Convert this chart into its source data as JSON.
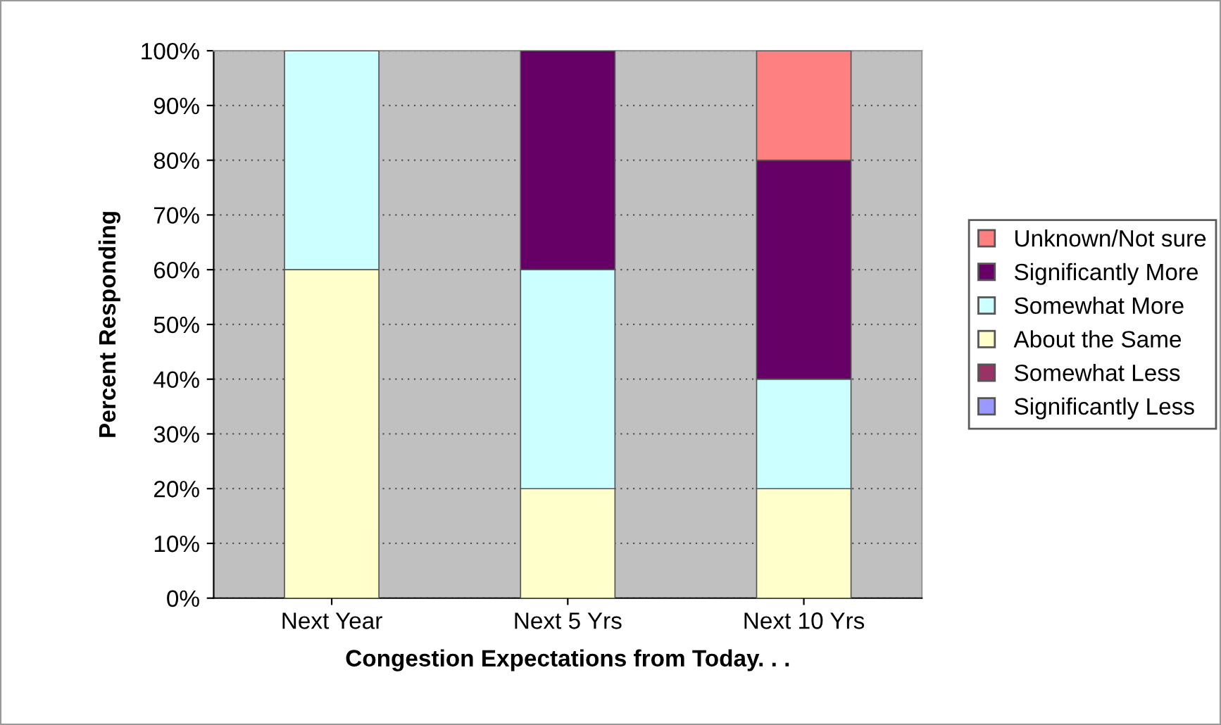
{
  "chart_data": {
    "type": "bar",
    "stacked": true,
    "xlabel": "Congestion Expectations from Today. . .",
    "ylabel": "Percent Responding",
    "categories": [
      "Next Year",
      "Next 5 Yrs",
      "Next 10 Yrs"
    ],
    "series": [
      {
        "name": "Significantly Less",
        "color": "#9999ff",
        "values": [
          0,
          0,
          0
        ]
      },
      {
        "name": "Somewhat Less",
        "color": "#993366",
        "values": [
          0,
          0,
          0
        ]
      },
      {
        "name": "About the Same",
        "color": "#ffffcc",
        "values": [
          60,
          20,
          20
        ]
      },
      {
        "name": "Somewhat More",
        "color": "#ccffff",
        "values": [
          40,
          40,
          20
        ]
      },
      {
        "name": "Significantly More",
        "color": "#660066",
        "values": [
          0,
          40,
          40
        ]
      },
      {
        "name": "Unknown/Not sure",
        "color": "#ff8080",
        "values": [
          0,
          0,
          20
        ]
      }
    ],
    "ylim": [
      0,
      100
    ],
    "yticks": [
      {
        "value": 0,
        "label": "0%"
      },
      {
        "value": 10,
        "label": "10%"
      },
      {
        "value": 20,
        "label": "20%"
      },
      {
        "value": 30,
        "label": "30%"
      },
      {
        "value": 40,
        "label": "40%"
      },
      {
        "value": 50,
        "label": "50%"
      },
      {
        "value": 60,
        "label": "60%"
      },
      {
        "value": 70,
        "label": "70%"
      },
      {
        "value": 80,
        "label": "80%"
      },
      {
        "value": 90,
        "label": "90%"
      },
      {
        "value": 100,
        "label": "100%"
      }
    ],
    "grid": "y",
    "legend": "right"
  }
}
